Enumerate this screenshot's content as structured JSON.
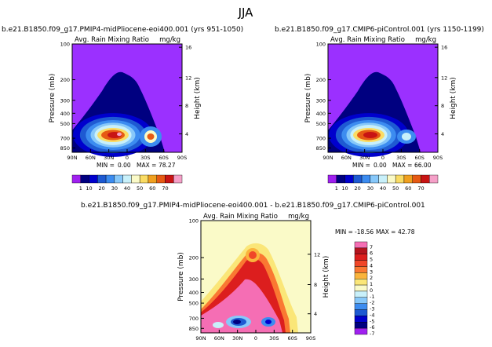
{
  "page_title": "JJA",
  "chart_data": [
    {
      "type": "heatmap",
      "title": "b.e21.B1850.f09_g17.PMIP4-midPliocene-eoi400.001 (yrs 951-1050)",
      "subtitle_left": "Avg. Rain Mixing Ratio",
      "subtitle_right": "mg/kg",
      "xlabel": "",
      "ylabel": "Pressure (mb)",
      "ylabel_right": "Height (km)",
      "x_ticks": [
        "90N",
        "60N",
        "30N",
        "0",
        "30S",
        "60S",
        "90S"
      ],
      "y_ticks": [
        "100",
        "200",
        "300",
        "400",
        "500",
        "700",
        "850"
      ],
      "y_right_ticks": [
        "16",
        "12",
        "8",
        "4"
      ],
      "stats": {
        "min_label": "MIN =",
        "min": "0.00",
        "max_label": "MAX =",
        "max": "78.27"
      },
      "colorbar_labels": [
        "1",
        "10",
        "20",
        "30",
        "40",
        "50",
        "60",
        "70"
      ]
    },
    {
      "type": "heatmap",
      "title": "b.e21.B1850.f09_g17.CMIP6-piControl.001 (yrs 1150-1199)",
      "subtitle_left": "Avg. Rain Mixing Ratio",
      "subtitle_right": "mg/kg",
      "xlabel": "",
      "ylabel": "Pressure (mb)",
      "ylabel_right": "Height (km)",
      "x_ticks": [
        "90N",
        "60N",
        "30N",
        "0",
        "30S",
        "60S",
        "90S"
      ],
      "y_ticks": [
        "100",
        "200",
        "300",
        "400",
        "500",
        "700",
        "850"
      ],
      "y_right_ticks": [
        "16",
        "12",
        "8",
        "4"
      ],
      "stats": {
        "min_label": "MIN =",
        "min": "0.00",
        "max_label": "MAX =",
        "max": "66.00"
      },
      "colorbar_labels": [
        "1",
        "10",
        "20",
        "30",
        "40",
        "50",
        "60",
        "70"
      ]
    },
    {
      "type": "heatmap",
      "title": "b.e21.B1850.f09_g17.PMIP4-midPliocene-eoi400.001 - b.e21.B1850.f09_g17.CMIP6-piControl.001",
      "subtitle_left": "Avg. Rain Mixing Ratio",
      "subtitle_right": "mg/kg",
      "xlabel": "",
      "ylabel": "Pressure (mb)",
      "ylabel_right": "Height (km)",
      "x_ticks": [
        "90N",
        "60N",
        "30N",
        "0",
        "30S",
        "60S",
        "90S"
      ],
      "y_ticks": [
        "100",
        "200",
        "300",
        "400",
        "500",
        "700",
        "850"
      ],
      "y_right_ticks": [
        "12",
        "8",
        "4"
      ],
      "stats": {
        "min_label": "MIN =",
        "min": "-18.56",
        "max_label": "MAX =",
        "max": "42.78"
      },
      "colorbar_labels": [
        "7",
        "6",
        "5",
        "4",
        "3",
        "2",
        "1",
        "0",
        "-1",
        "-2",
        "-3",
        "-4",
        "-5",
        "-6",
        "-7"
      ]
    }
  ],
  "colors": {
    "background_purple": "#9b30ff",
    "abs_scale": [
      "#a020f0",
      "#000080",
      "#0000cd",
      "#1e5ad2",
      "#3c8cf0",
      "#87c8fa",
      "#c8f0fa",
      "#fafac8",
      "#fadc64",
      "#f0a020",
      "#e65a14",
      "#c81414",
      "#f5a0c8"
    ],
    "diff_scale": [
      "#f56eb4",
      "#b4141e",
      "#dc1e1e",
      "#f04628",
      "#fa7832",
      "#fab43c",
      "#fae678",
      "#fafac8",
      "#c8f0fa",
      "#87c8fa",
      "#3c8cf0",
      "#1e5ad2",
      "#0000cd",
      "#000080",
      "#a020f0"
    ]
  }
}
